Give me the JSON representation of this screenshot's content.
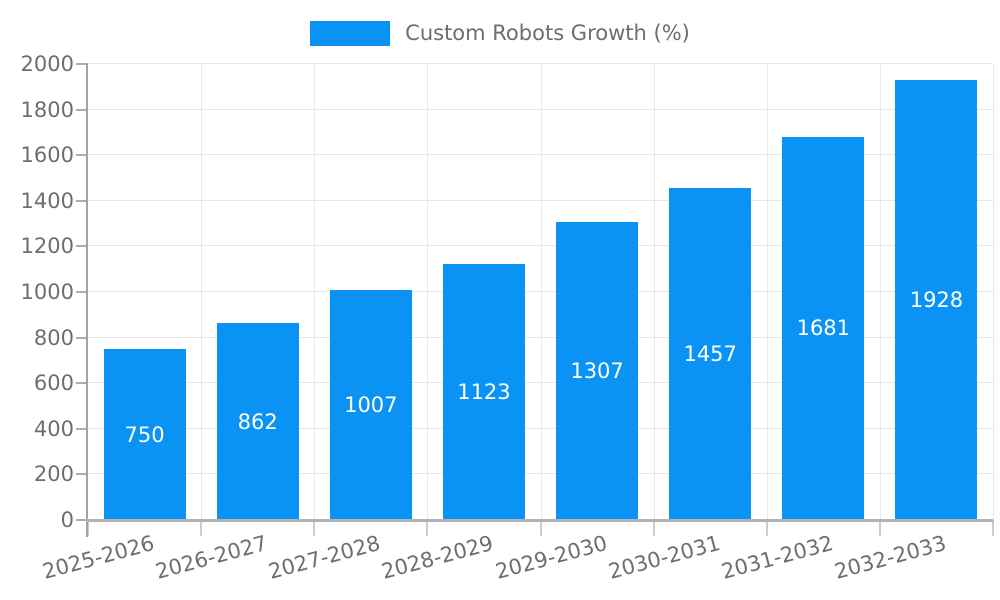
{
  "chart_data": {
    "type": "bar",
    "title": "Custom Robots Growth (%)",
    "legend_position": "top",
    "categories": [
      "2025-2026",
      "2026-2027",
      "2027-2028",
      "2028-2029",
      "2029-2030",
      "2030-2031",
      "2031-2032",
      "2032-2033"
    ],
    "series": [
      {
        "name": "Custom Robots Growth (%)",
        "values": [
          750,
          862,
          1007,
          1123,
          1307,
          1457,
          1681,
          1928
        ]
      }
    ],
    "value_labels": [
      "750",
      "862",
      "1007",
      "1123",
      "1307",
      "1457",
      "1681",
      "1928"
    ],
    "xlabel": "",
    "ylabel": "",
    "ylim": [
      0,
      2000
    ],
    "yticks": [
      0,
      200,
      400,
      600,
      800,
      1000,
      1200,
      1400,
      1600,
      1800,
      2000
    ],
    "grid": true,
    "colors": {
      "bar": "#0a93f5",
      "value_label": "#ffffff",
      "axis_text": "#6e6e6e",
      "grid": "#e7e7e7",
      "axis_line_x": "#b3b3b3",
      "axis_line_y": "#a3a3a3",
      "y_tick": "#adadad",
      "x_tick": "#cccccc",
      "background": "#ffffff"
    }
  }
}
